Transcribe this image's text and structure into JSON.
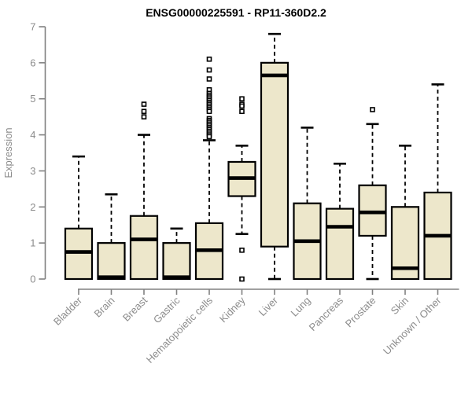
{
  "chart_data": {
    "type": "box",
    "title": "ENSG00000225591 - RP11-360D2.2",
    "xlabel": "",
    "ylabel": "Expression",
    "ylim": [
      0,
      7
    ],
    "yticks": [
      0,
      1,
      2,
      3,
      4,
      5,
      6,
      7
    ],
    "grid": false,
    "legend": false,
    "categories": [
      "Bladder",
      "Brain",
      "Breast",
      "Gastric",
      "Hematopoietic cells",
      "Kidney",
      "Liver",
      "Lung",
      "Pancreas",
      "Prostate",
      "Skin",
      "Unknown / Other"
    ],
    "series": [
      {
        "name": "Bladder",
        "q1": 0,
        "median": 0.75,
        "q3": 1.4,
        "whisker_low": 0,
        "whisker_high": 3.4,
        "outliers": []
      },
      {
        "name": "Brain",
        "q1": 0,
        "median": 0.05,
        "q3": 1.0,
        "whisker_low": 0,
        "whisker_high": 2.35,
        "outliers": []
      },
      {
        "name": "Breast",
        "q1": 0,
        "median": 1.1,
        "q3": 1.75,
        "whisker_low": 0,
        "whisker_high": 4.0,
        "outliers": [
          4.5,
          4.65,
          4.85
        ]
      },
      {
        "name": "Gastric",
        "q1": 0,
        "median": 0.05,
        "q3": 1.0,
        "whisker_low": 0,
        "whisker_high": 1.4,
        "outliers": []
      },
      {
        "name": "Hematopoietic cells",
        "q1": 0,
        "median": 0.8,
        "q3": 1.55,
        "whisker_low": 0,
        "whisker_high": 3.85,
        "outliers": [
          6.1,
          5.8,
          5.55,
          5.25,
          5.15,
          5.1,
          5.05,
          5.0,
          4.95,
          4.9,
          4.85,
          4.8,
          4.75,
          4.7,
          4.65,
          4.45,
          4.4,
          4.35,
          4.3,
          4.25,
          4.2,
          4.15,
          4.1,
          4.05,
          4.0,
          3.95
        ]
      },
      {
        "name": "Kidney",
        "q1": 2.3,
        "median": 2.8,
        "q3": 3.25,
        "whisker_low": 1.25,
        "whisker_high": 3.7,
        "outliers": [
          5.0,
          4.85,
          4.8,
          4.65,
          0.8,
          0.0
        ]
      },
      {
        "name": "Liver",
        "q1": 0.9,
        "median": 5.65,
        "q3": 6.0,
        "whisker_low": 0,
        "whisker_high": 6.8,
        "outliers": []
      },
      {
        "name": "Lung",
        "q1": 0,
        "median": 1.05,
        "q3": 2.1,
        "whisker_low": 0,
        "whisker_high": 4.2,
        "outliers": []
      },
      {
        "name": "Pancreas",
        "q1": 0,
        "median": 1.45,
        "q3": 1.95,
        "whisker_low": 0,
        "whisker_high": 3.2,
        "outliers": []
      },
      {
        "name": "Prostate",
        "q1": 1.2,
        "median": 1.85,
        "q3": 2.6,
        "whisker_low": 0,
        "whisker_high": 4.3,
        "outliers": [
          4.7
        ]
      },
      {
        "name": "Skin",
        "q1": 0,
        "median": 0.3,
        "q3": 2.0,
        "whisker_low": 0,
        "whisker_high": 3.7,
        "outliers": []
      },
      {
        "name": "Unknown / Other",
        "q1": 0,
        "median": 1.2,
        "q3": 2.4,
        "whisker_low": 0,
        "whisker_high": 5.4,
        "outliers": []
      }
    ]
  },
  "colors": {
    "background": "#ffffff",
    "box_fill": "#ede7cb",
    "box_stroke": "#000000",
    "median": "#000000",
    "whisker": "#000000",
    "outlier_fill": "#ffffff",
    "outlier_stroke": "#000000",
    "axis_line": "#808080",
    "axis_text": "#8c8c8c",
    "title": "#000000"
  }
}
